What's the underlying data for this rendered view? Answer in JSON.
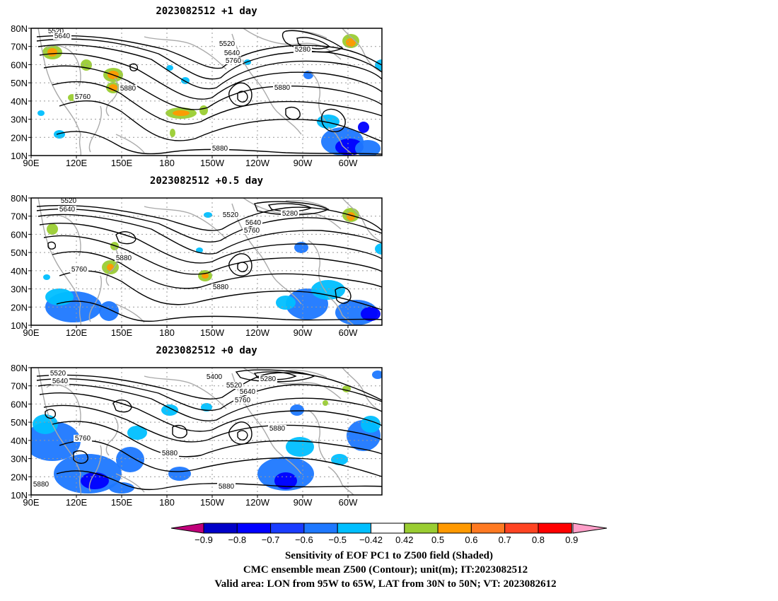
{
  "panels": [
    {
      "title": "2023082512  +1 day",
      "contour_labels": [
        "5520",
        "5640",
        "5520",
        "5640",
        "5760",
        "5880",
        "5760",
        "5880",
        "5280",
        "5880"
      ]
    },
    {
      "title": "2023082512  +0.5 day",
      "contour_labels": [
        "5520",
        "5640",
        "5520",
        "5640",
        "5760",
        "5880",
        "5760",
        "5280",
        "5880"
      ]
    },
    {
      "title": "2023082512  +0 day",
      "contour_labels": [
        "5520",
        "5640",
        "5400",
        "5520",
        "5640",
        "5760",
        "5880",
        "5760",
        "5880",
        "5280",
        "5880",
        "5880"
      ]
    }
  ],
  "axes": {
    "lat_ticks": [
      "80N",
      "70N",
      "60N",
      "50N",
      "40N",
      "30N",
      "20N",
      "10N"
    ],
    "lon_ticks": [
      "90E",
      "120E",
      "150E",
      "180",
      "150W",
      "120W",
      "90W",
      "60W"
    ]
  },
  "colorbar": {
    "ticks": [
      "−0.9",
      "−0.8",
      "−0.7",
      "−0.6",
      "−0.5",
      "−0.42",
      "0.42",
      "0.5",
      "0.6",
      "0.7",
      "0.8",
      "0.9"
    ],
    "colors": [
      "#c0007a",
      "#0000c8",
      "#0000ff",
      "#1a3cff",
      "#1e78ff",
      "#00bfff",
      "#ffffff",
      "#9acd32",
      "#ff9900",
      "#ff7a22",
      "#ff4422",
      "#ff0000",
      "#ff9ec8"
    ]
  },
  "caption": {
    "line1": "Sensitivity of EOF PC1 to Z500 field (Shaded)",
    "line2": "CMC ensemble mean Z500 (Contour); unit(m); IT:2023082512",
    "line3": "Valid area: LON from 95W to 65W, LAT from 30N to 50N; VT: 2023082612"
  }
}
